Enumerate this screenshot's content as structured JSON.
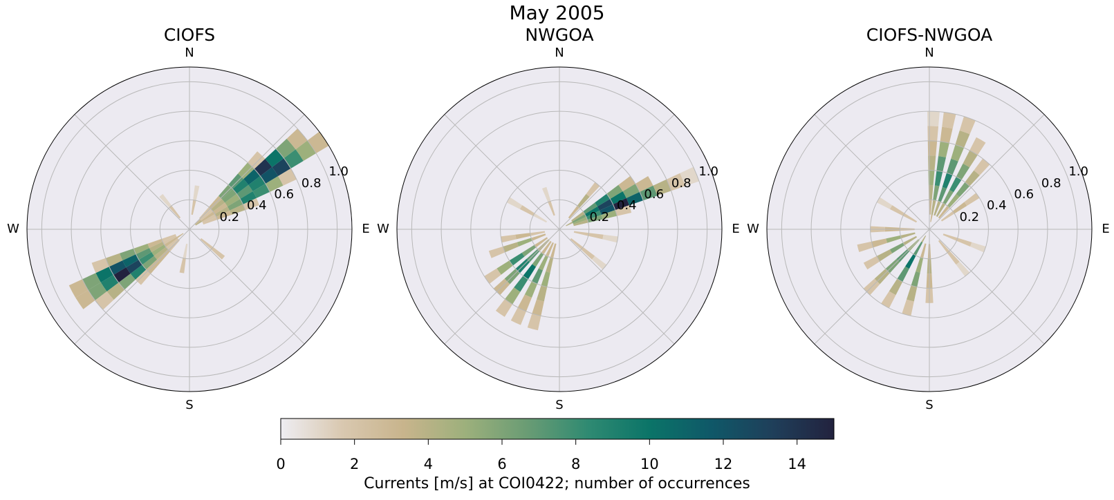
{
  "figure": {
    "title": "May 2005",
    "colorbar": {
      "label": "Currents [m/s] at COI0422; number of occurrences",
      "min": 0,
      "max": 15,
      "ticks": [
        "0",
        "2",
        "4",
        "6",
        "8",
        "10",
        "12",
        "14"
      ],
      "colors": [
        "#eeedf2",
        "#d9c8b0",
        "#c8b48c",
        "#9db07c",
        "#6a9c74",
        "#2f8a72",
        "#0b7468",
        "#0f5868",
        "#1f3f5a",
        "#22223e"
      ]
    }
  },
  "chart_data": [
    {
      "type": "polar-rose-heatmap",
      "title": "CIOFS",
      "compass": [
        "N",
        "E",
        "S",
        "W"
      ],
      "rlim": [
        0,
        1.1
      ],
      "r_ticks": [
        "0.2",
        "0.4",
        "0.6",
        "0.8",
        "1.0"
      ],
      "grid": true,
      "bins": [
        {
          "dir": 56,
          "r": [
            0.05,
            0.1,
            0.2,
            0.3,
            0.4,
            0.5,
            0.6,
            0.7,
            0.8,
            0.9,
            1.0
          ],
          "counts": [
            4,
            3,
            3,
            5,
            7,
            9,
            12,
            13,
            8,
            5,
            3
          ]
        },
        {
          "dir": 50,
          "r": [
            0.05,
            0.1,
            0.2,
            0.3,
            0.4,
            0.5,
            0.6,
            0.7,
            0.8,
            0.9
          ],
          "counts": [
            3,
            2,
            4,
            6,
            9,
            11,
            14,
            10,
            6,
            3
          ]
        },
        {
          "dir": 62,
          "r": [
            0.1,
            0.2,
            0.3,
            0.4,
            0.5,
            0.6,
            0.7
          ],
          "counts": [
            2,
            4,
            6,
            9,
            8,
            5,
            2
          ]
        },
        {
          "dir": 44,
          "r": [
            0.1,
            0.2,
            0.3,
            0.4,
            0.5,
            0.6
          ],
          "counts": [
            2,
            3,
            6,
            7,
            5,
            2
          ]
        },
        {
          "dir": 68,
          "r": [
            0.1,
            0.2,
            0.3,
            0.4
          ],
          "counts": [
            2,
            3,
            4,
            2
          ]
        },
        {
          "dir": 236,
          "r": [
            0.05,
            0.1,
            0.2,
            0.3,
            0.4,
            0.5,
            0.6,
            0.7,
            0.8
          ],
          "counts": [
            3,
            3,
            5,
            8,
            13,
            15,
            9,
            6,
            3
          ]
        },
        {
          "dir": 242,
          "r": [
            0.1,
            0.2,
            0.3,
            0.4,
            0.5,
            0.6,
            0.7,
            0.8
          ],
          "counts": [
            2,
            4,
            7,
            11,
            12,
            10,
            6,
            3
          ]
        },
        {
          "dir": 230,
          "r": [
            0.1,
            0.2,
            0.3,
            0.4,
            0.5,
            0.6,
            0.7
          ],
          "counts": [
            2,
            4,
            6,
            9,
            6,
            4,
            2
          ]
        },
        {
          "dir": 248,
          "r": [
            0.1,
            0.2,
            0.3,
            0.4,
            0.5,
            0.6
          ],
          "counts": [
            2,
            3,
            5,
            6,
            4,
            2
          ]
        },
        {
          "dir": 224,
          "r": [
            0.1,
            0.2,
            0.3,
            0.4
          ],
          "counts": [
            2,
            3,
            3,
            2
          ]
        },
        {
          "dir": 130,
          "r": [
            0.1,
            0.2
          ],
          "counts": [
            2,
            2
          ]
        },
        {
          "dir": 320,
          "r": [
            0.1,
            0.2
          ],
          "counts": [
            2,
            1
          ]
        },
        {
          "dir": 10,
          "r": [
            0.1,
            0.2
          ],
          "counts": [
            2,
            1
          ]
        },
        {
          "dir": 190,
          "r": [
            0.1,
            0.2
          ],
          "counts": [
            1,
            2
          ]
        }
      ]
    },
    {
      "type": "polar-rose-heatmap",
      "title": "NWGOA",
      "compass": [
        "N",
        "E",
        "S",
        "W"
      ],
      "rlim": [
        0,
        1.1
      ],
      "r_ticks": [
        "0.2",
        "0.4",
        "0.6",
        "0.8",
        "1.0"
      ],
      "grid": true,
      "bins": [
        {
          "dir": 62,
          "r": [
            0.05,
            0.1,
            0.2,
            0.3,
            0.4,
            0.5,
            0.6
          ],
          "counts": [
            4,
            6,
            10,
            13,
            10,
            6,
            3
          ]
        },
        {
          "dir": 68,
          "r": [
            0.1,
            0.2,
            0.3,
            0.4,
            0.5,
            0.6,
            0.7,
            0.8,
            0.9
          ],
          "counts": [
            5,
            8,
            12,
            15,
            11,
            7,
            4,
            2,
            1
          ]
        },
        {
          "dir": 56,
          "r": [
            0.1,
            0.2,
            0.3,
            0.4,
            0.5
          ],
          "counts": [
            4,
            7,
            9,
            6,
            3
          ]
        },
        {
          "dir": 74,
          "r": [
            0.1,
            0.2,
            0.3,
            0.4
          ],
          "counts": [
            4,
            6,
            5,
            2
          ]
        },
        {
          "dir": 40,
          "r": [
            0.1,
            0.2,
            0.3
          ],
          "counts": [
            3,
            4,
            2
          ]
        },
        {
          "dir": 215,
          "r": [
            0.1,
            0.2,
            0.3,
            0.4,
            0.5,
            0.6
          ],
          "counts": [
            3,
            6,
            10,
            8,
            5,
            2
          ]
        },
        {
          "dir": 225,
          "r": [
            0.1,
            0.2,
            0.3,
            0.4,
            0.5
          ],
          "counts": [
            4,
            7,
            9,
            6,
            3
          ]
        },
        {
          "dir": 235,
          "r": [
            0.1,
            0.2,
            0.3,
            0.4,
            0.5
          ],
          "counts": [
            3,
            6,
            8,
            5,
            2
          ]
        },
        {
          "dir": 205,
          "r": [
            0.1,
            0.2,
            0.3,
            0.4,
            0.5,
            0.6
          ],
          "counts": [
            3,
            5,
            7,
            5,
            3,
            2
          ]
        },
        {
          "dir": 195,
          "r": [
            0.1,
            0.2,
            0.3,
            0.4,
            0.5,
            0.6
          ],
          "counts": [
            3,
            4,
            5,
            4,
            3,
            2
          ]
        },
        {
          "dir": 250,
          "r": [
            0.1,
            0.2,
            0.3,
            0.4
          ],
          "counts": [
            3,
            5,
            4,
            2
          ]
        },
        {
          "dir": 260,
          "r": [
            0.1,
            0.2,
            0.3
          ],
          "counts": [
            2,
            3,
            2
          ]
        },
        {
          "dir": 100,
          "r": [
            0.1,
            0.2,
            0.3
          ],
          "counts": [
            2,
            2,
            1
          ]
        },
        {
          "dir": 130,
          "r": [
            0.1,
            0.2,
            0.3
          ],
          "counts": [
            2,
            2,
            1
          ]
        },
        {
          "dir": 300,
          "r": [
            0.1,
            0.2,
            0.3
          ],
          "counts": [
            1,
            2,
            1
          ]
        },
        {
          "dir": 340,
          "r": [
            0.1,
            0.2
          ],
          "counts": [
            2,
            1
          ]
        }
      ]
    },
    {
      "type": "polar-rose-heatmap",
      "title": "CIOFS-NWGOA",
      "compass": [
        "N",
        "E",
        "S",
        "W"
      ],
      "rlim": [
        0,
        1.1
      ],
      "r_ticks": [
        "0.2",
        "0.4",
        "0.6",
        "0.8",
        "1.0"
      ],
      "grid": true,
      "bins": [
        {
          "dir": 10,
          "r": [
            0.05,
            0.1,
            0.2,
            0.3,
            0.4,
            0.5,
            0.6,
            0.7
          ],
          "counts": [
            3,
            4,
            6,
            8,
            7,
            5,
            3,
            2
          ]
        },
        {
          "dir": 20,
          "r": [
            0.1,
            0.2,
            0.3,
            0.4,
            0.5,
            0.6,
            0.7
          ],
          "counts": [
            4,
            7,
            9,
            7,
            5,
            4,
            2
          ]
        },
        {
          "dir": 30,
          "r": [
            0.1,
            0.2,
            0.3,
            0.4,
            0.5,
            0.6
          ],
          "counts": [
            4,
            6,
            8,
            6,
            4,
            2
          ]
        },
        {
          "dir": 40,
          "r": [
            0.1,
            0.2,
            0.3,
            0.4,
            0.5
          ],
          "counts": [
            3,
            5,
            6,
            4,
            2
          ]
        },
        {
          "dir": 2,
          "r": [
            0.1,
            0.2,
            0.3,
            0.4,
            0.5,
            0.6,
            0.7
          ],
          "counts": [
            3,
            4,
            5,
            4,
            3,
            2,
            1
          ]
        },
        {
          "dir": 55,
          "r": [
            0.1,
            0.2,
            0.3
          ],
          "counts": [
            2,
            3,
            2
          ]
        },
        {
          "dir": 210,
          "r": [
            0.05,
            0.1,
            0.2,
            0.3,
            0.4,
            0.5
          ],
          "counts": [
            4,
            7,
            10,
            7,
            4,
            2
          ]
        },
        {
          "dir": 225,
          "r": [
            0.1,
            0.2,
            0.3,
            0.4,
            0.5
          ],
          "counts": [
            5,
            7,
            6,
            4,
            2
          ]
        },
        {
          "dir": 240,
          "r": [
            0.1,
            0.2,
            0.3,
            0.4
          ],
          "counts": [
            4,
            6,
            4,
            2
          ]
        },
        {
          "dir": 255,
          "r": [
            0.1,
            0.2,
            0.3,
            0.4
          ],
          "counts": [
            4,
            5,
            3,
            2
          ]
        },
        {
          "dir": 195,
          "r": [
            0.1,
            0.2,
            0.3,
            0.4,
            0.5
          ],
          "counts": [
            3,
            5,
            6,
            4,
            2
          ]
        },
        {
          "dir": 180,
          "r": [
            0.1,
            0.2,
            0.3,
            0.4
          ],
          "counts": [
            3,
            4,
            3,
            2
          ]
        },
        {
          "dir": 270,
          "r": [
            0.1,
            0.2,
            0.3
          ],
          "counts": [
            2,
            3,
            2
          ]
        },
        {
          "dir": 300,
          "r": [
            0.1,
            0.2,
            0.3
          ],
          "counts": [
            2,
            2,
            1
          ]
        },
        {
          "dir": 110,
          "r": [
            0.1,
            0.2,
            0.3
          ],
          "counts": [
            2,
            2,
            1
          ]
        },
        {
          "dir": 140,
          "r": [
            0.1,
            0.2,
            0.3
          ],
          "counts": [
            2,
            2,
            1
          ]
        }
      ]
    }
  ]
}
